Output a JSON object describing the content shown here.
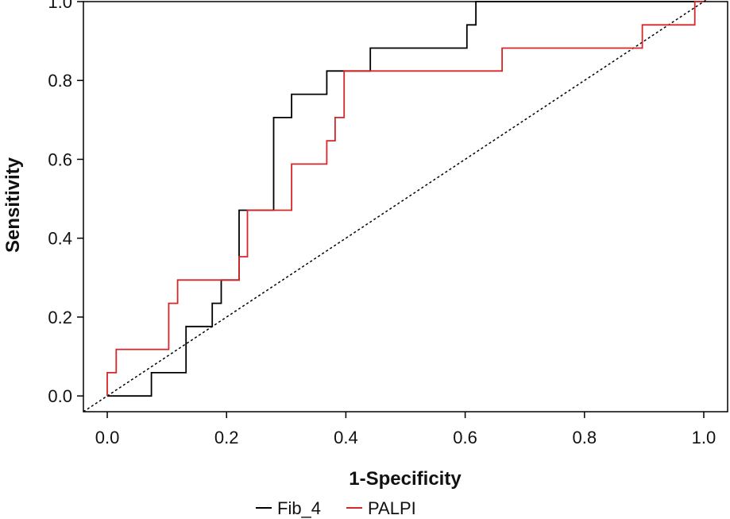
{
  "chart_data": {
    "type": "line",
    "title": "",
    "xlabel": "1-Specificity",
    "ylabel": "Sensitivity",
    "xlim": [
      -0.04,
      1.04
    ],
    "ylim": [
      -0.04,
      1.0
    ],
    "xticks": [
      0.0,
      0.2,
      0.4,
      0.6,
      0.8,
      1.0
    ],
    "xtick_labels": [
      "0.0",
      "0.2",
      "0.4",
      "0.6",
      "0.8",
      "1.0"
    ],
    "yticks": [
      0.0,
      0.2,
      0.4,
      0.6,
      0.8,
      1.0
    ],
    "ytick_labels": [
      "0.0",
      "0.2",
      "0.4",
      "0.6",
      "0.8",
      "1.0"
    ],
    "grid": false,
    "legend_position": "bottom",
    "reference_line": {
      "name": "chance",
      "style": "dotted",
      "color": "#000000",
      "points": [
        [
          -0.04,
          -0.04
        ],
        [
          1.04,
          1.04
        ]
      ]
    },
    "series": [
      {
        "name": "Fib_4",
        "color": "#000000",
        "step": true,
        "points": [
          [
            0.0,
            0.0
          ],
          [
            0.074,
            0.0
          ],
          [
            0.074,
            0.059
          ],
          [
            0.132,
            0.059
          ],
          [
            0.132,
            0.176
          ],
          [
            0.176,
            0.176
          ],
          [
            0.176,
            0.235
          ],
          [
            0.191,
            0.235
          ],
          [
            0.191,
            0.294
          ],
          [
            0.221,
            0.294
          ],
          [
            0.221,
            0.471
          ],
          [
            0.279,
            0.471
          ],
          [
            0.279,
            0.706
          ],
          [
            0.309,
            0.706
          ],
          [
            0.309,
            0.765
          ],
          [
            0.368,
            0.765
          ],
          [
            0.368,
            0.824
          ],
          [
            0.441,
            0.824
          ],
          [
            0.441,
            0.882
          ],
          [
            0.603,
            0.882
          ],
          [
            0.603,
            0.941
          ],
          [
            0.618,
            0.941
          ],
          [
            0.618,
            1.0
          ],
          [
            1.0,
            1.0
          ]
        ]
      },
      {
        "name": "PALPI",
        "color": "#d62728",
        "step": true,
        "points": [
          [
            0.0,
            0.0
          ],
          [
            0.0,
            0.059
          ],
          [
            0.015,
            0.059
          ],
          [
            0.015,
            0.118
          ],
          [
            0.103,
            0.118
          ],
          [
            0.103,
            0.235
          ],
          [
            0.118,
            0.235
          ],
          [
            0.118,
            0.294
          ],
          [
            0.221,
            0.294
          ],
          [
            0.221,
            0.353
          ],
          [
            0.235,
            0.353
          ],
          [
            0.235,
            0.471
          ],
          [
            0.309,
            0.471
          ],
          [
            0.309,
            0.588
          ],
          [
            0.368,
            0.588
          ],
          [
            0.368,
            0.647
          ],
          [
            0.382,
            0.647
          ],
          [
            0.382,
            0.706
          ],
          [
            0.397,
            0.706
          ],
          [
            0.397,
            0.824
          ],
          [
            0.662,
            0.824
          ],
          [
            0.662,
            0.882
          ],
          [
            0.897,
            0.882
          ],
          [
            0.897,
            0.941
          ],
          [
            0.985,
            0.941
          ],
          [
            0.985,
            1.0
          ],
          [
            1.0,
            1.0
          ]
        ]
      }
    ]
  }
}
